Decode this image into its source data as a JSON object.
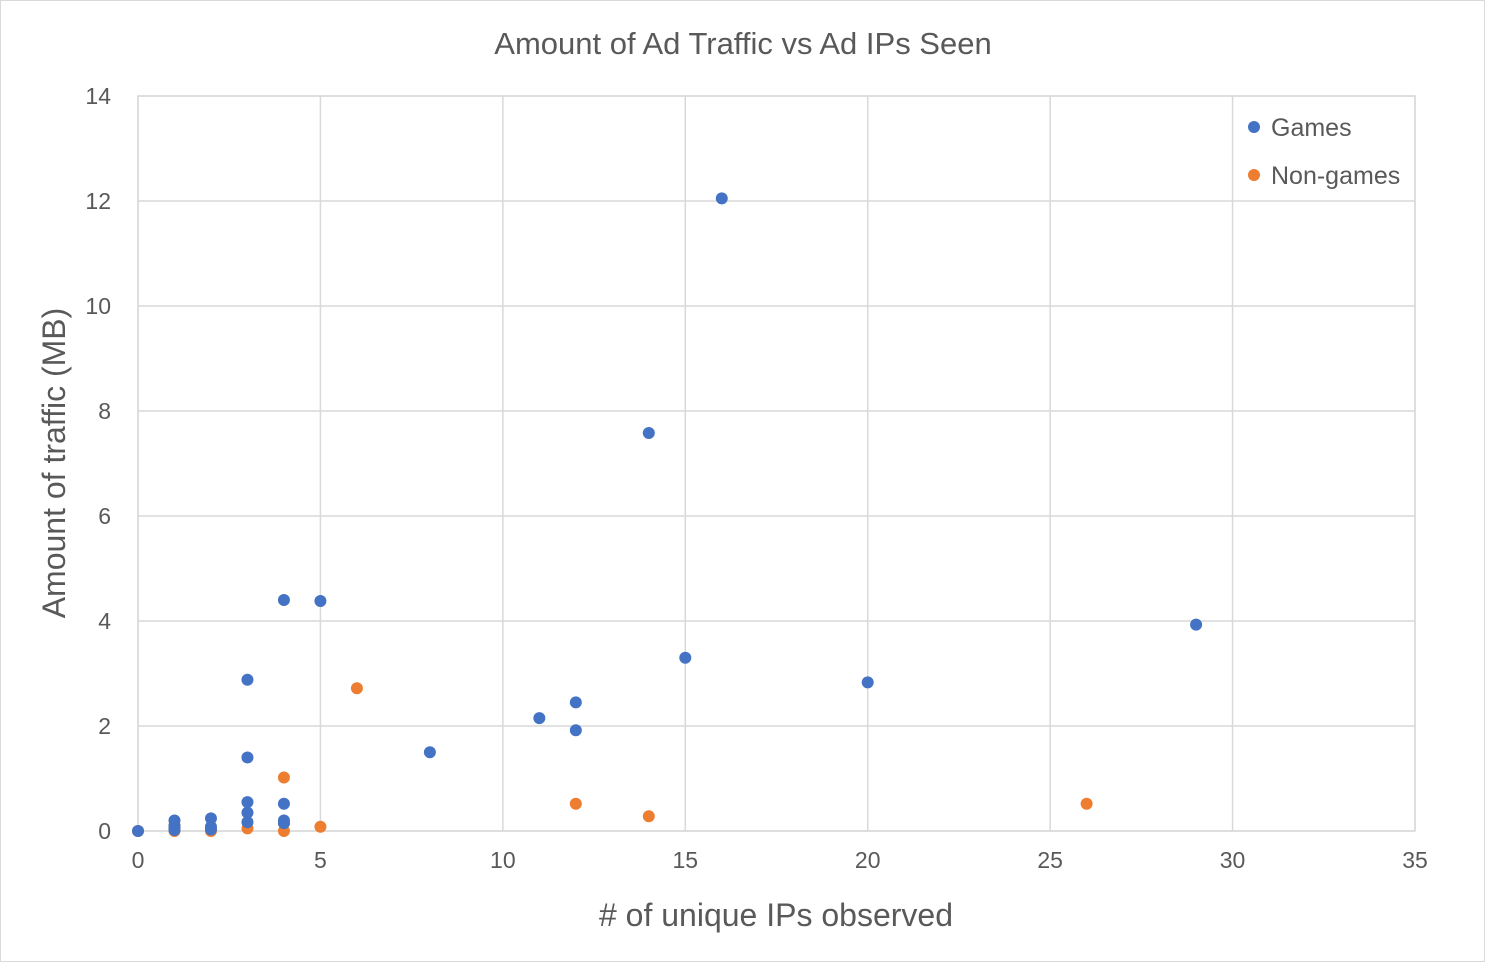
{
  "chart_data": {
    "type": "scatter",
    "title": "Amount of Ad Traffic vs Ad IPs Seen",
    "xlabel": "# of unique IPs observed",
    "ylabel": "Amount of traffic (MB)",
    "xlim": [
      0,
      35
    ],
    "ylim": [
      0,
      14
    ],
    "x_ticks": [
      0,
      5,
      10,
      15,
      20,
      25,
      30,
      35
    ],
    "y_ticks": [
      0,
      2,
      4,
      6,
      8,
      10,
      12,
      14
    ],
    "grid": true,
    "legend_position": "top-right",
    "series": [
      {
        "name": "Games",
        "color": "#4472C4",
        "points": [
          [
            16,
            12.05
          ],
          [
            14,
            7.58
          ],
          [
            4,
            4.4
          ],
          [
            5,
            4.38
          ],
          [
            29,
            3.93
          ],
          [
            15,
            3.3
          ],
          [
            3,
            2.88
          ],
          [
            20,
            2.83
          ],
          [
            12,
            2.45
          ],
          [
            11,
            2.15
          ],
          [
            12,
            1.92
          ],
          [
            8,
            1.5
          ],
          [
            3,
            1.4
          ],
          [
            3,
            0.55
          ],
          [
            4,
            0.52
          ],
          [
            3,
            0.35
          ],
          [
            2,
            0.24
          ],
          [
            1,
            0.2
          ],
          [
            4,
            0.2
          ],
          [
            3,
            0.17
          ],
          [
            4,
            0.15
          ],
          [
            1,
            0.1
          ],
          [
            2,
            0.08
          ],
          [
            1,
            0.05
          ],
          [
            0,
            0.0
          ],
          [
            1,
            0.02
          ],
          [
            2,
            0.03
          ]
        ]
      },
      {
        "name": "Non-games",
        "color": "#ED7D31",
        "points": [
          [
            6,
            2.72
          ],
          [
            4,
            1.02
          ],
          [
            12,
            0.52
          ],
          [
            26,
            0.52
          ],
          [
            14,
            0.28
          ],
          [
            4,
            0.15
          ],
          [
            1,
            0.1
          ],
          [
            5,
            0.08
          ],
          [
            3,
            0.05
          ],
          [
            2,
            0.04
          ],
          [
            1,
            0.02
          ],
          [
            0,
            0.0
          ],
          [
            4,
            0.0
          ],
          [
            2,
            0.0
          ],
          [
            1,
            0.0
          ]
        ]
      }
    ]
  }
}
